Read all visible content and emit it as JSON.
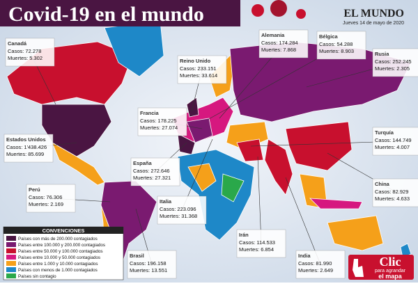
{
  "header": {
    "title": "Covid-19 en el mundo",
    "brand": "EL MUNDO",
    "date": "Jueves 14 de mayo de 2020"
  },
  "labels": [
    {
      "name": "Canadá",
      "cases": "Casos: 72.278",
      "deaths": "Muertes: 5.302"
    },
    {
      "name": "Estados Unidos",
      "cases": "Casos: 1'438.426",
      "deaths": "Muertes: 85.699"
    },
    {
      "name": "Perú",
      "cases": "Casos: 76.306",
      "deaths": "Muertes: 2.169"
    },
    {
      "name": "Brasil",
      "cases": "Casos: 196.158",
      "deaths": "Muertes: 13.551"
    },
    {
      "name": "Reino Unido",
      "cases": "Casos: 233.151",
      "deaths": "Muertes: 33.614"
    },
    {
      "name": "Francia",
      "cases": "Casos: 178.225",
      "deaths": "Muertes: 27.074"
    },
    {
      "name": "España",
      "cases": "Casos: 272.646",
      "deaths": "Muertes: 27.321"
    },
    {
      "name": "Italia",
      "cases": "Casos: 223.096",
      "deaths": "Muertes: 31.368"
    },
    {
      "name": "Alemania",
      "cases": "Casos: 174.284",
      "deaths": "Muertes: 7.868"
    },
    {
      "name": "Bélgica",
      "cases": "Casos: 54.288",
      "deaths": "Muertes: 8.903"
    },
    {
      "name": "Rusia",
      "cases": "Casos: 252.245",
      "deaths": "Muertes: 2.305"
    },
    {
      "name": "Turquía",
      "cases": "Casos: 144.749",
      "deaths": "Muertes: 4.007"
    },
    {
      "name": "China",
      "cases": "Casos: 82.929",
      "deaths": "Muertes: 4.633"
    },
    {
      "name": "Irán",
      "cases": "Casos: 114.533",
      "deaths": "Muertes: 6.854"
    },
    {
      "name": "India",
      "cases": "Casos: 81.990",
      "deaths": "Muertes: 2.649"
    }
  ],
  "legend": {
    "title": "CONVENCIONES",
    "items": [
      {
        "label": "Países con más de 200.000 contagiados",
        "color": "#4a1542"
      },
      {
        "label": "Países entre 100.000 y 200.000 contagiados",
        "color": "#7a1a70"
      },
      {
        "label": "Países entre 50.000 y 100.000 contagiados",
        "color": "#c8102e"
      },
      {
        "label": "Países entre 10.000 y 50.000 contagiados",
        "color": "#d6187f"
      },
      {
        "label": "Países entre 1.000 y 10.000 contagiados",
        "color": "#f5a01a"
      },
      {
        "label": "Países con menos de 1.000 contagiados",
        "color": "#1e88c8"
      },
      {
        "label": "Países sin contagio",
        "color": "#2aa84a"
      }
    ]
  },
  "button": {
    "main": "Clic",
    "line1": "para agrandar",
    "line2": "el mapa"
  }
}
